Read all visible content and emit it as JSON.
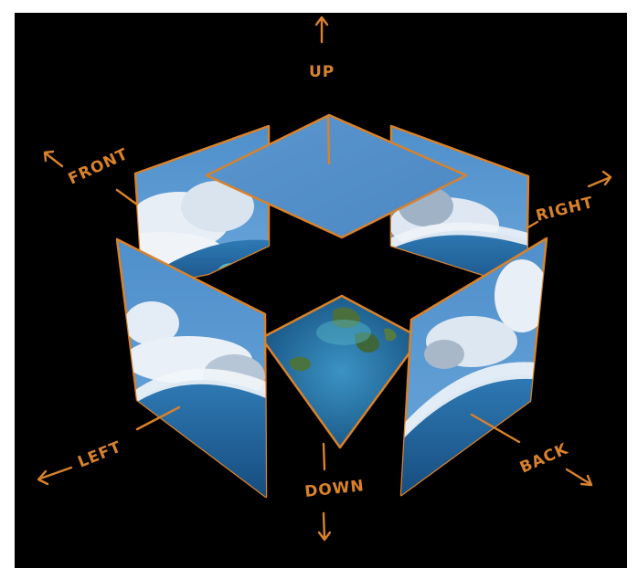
{
  "labels": {
    "up": "UP",
    "front": "FRONT",
    "right": "RIGHT",
    "left": "LEFT",
    "down": "DOWN",
    "back": "BACK"
  },
  "colors": {
    "background": "#000000",
    "annotation": "#d9822b",
    "sky": "#5b97cf",
    "cloud": "#e6eef6",
    "ocean": "#1e5f93",
    "land": "#3e6a45"
  }
}
